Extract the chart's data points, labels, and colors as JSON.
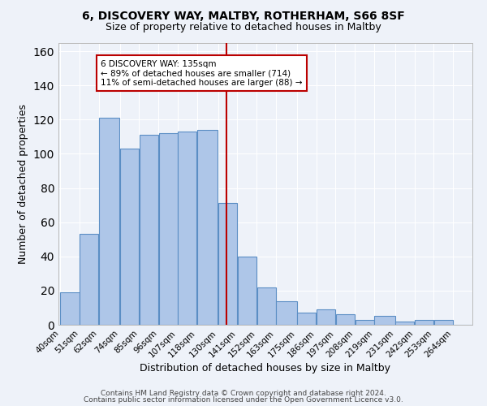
{
  "title1": "6, DISCOVERY WAY, MALTBY, ROTHERHAM, S66 8SF",
  "title2": "Size of property relative to detached houses in Maltby",
  "xlabel": "Distribution of detached houses by size in Maltby",
  "ylabel": "Number of detached properties",
  "footer1": "Contains HM Land Registry data © Crown copyright and database right 2024.",
  "footer2": "Contains public sector information licensed under the Open Government Licence v3.0.",
  "bin_labels": [
    "40sqm",
    "51sqm",
    "62sqm",
    "74sqm",
    "85sqm",
    "96sqm",
    "107sqm",
    "118sqm",
    "130sqm",
    "141sqm",
    "152sqm",
    "163sqm",
    "175sqm",
    "186sqm",
    "197sqm",
    "208sqm",
    "219sqm",
    "231sqm",
    "242sqm",
    "253sqm",
    "264sqm"
  ],
  "bin_edges": [
    40,
    51,
    62,
    74,
    85,
    96,
    107,
    118,
    130,
    141,
    152,
    163,
    175,
    186,
    197,
    208,
    219,
    231,
    242,
    253,
    264,
    275
  ],
  "bar_heights": [
    19,
    53,
    121,
    103,
    111,
    112,
    113,
    114,
    71,
    40,
    22,
    14,
    7,
    9,
    6,
    3,
    5,
    2,
    3,
    3,
    0
  ],
  "bar_color": "#aec6e8",
  "bar_edge_color": "#5b8ec4",
  "vline_x": 135,
  "vline_color": "#bb0000",
  "annotation_box_text": "6 DISCOVERY WAY: 135sqm\n← 89% of detached houses are smaller (714)\n11% of semi-detached houses are larger (88) →",
  "annotation_box_color": "#bb0000",
  "annotation_box_fill": "#ffffff",
  "ylim": [
    0,
    165
  ],
  "background_color": "#eef2f9",
  "grid_color": "#ffffff",
  "title1_fontsize": 10,
  "title2_fontsize": 9,
  "xlabel_fontsize": 9,
  "ylabel_fontsize": 9,
  "tick_fontsize": 7.5,
  "footer_fontsize": 6.5
}
